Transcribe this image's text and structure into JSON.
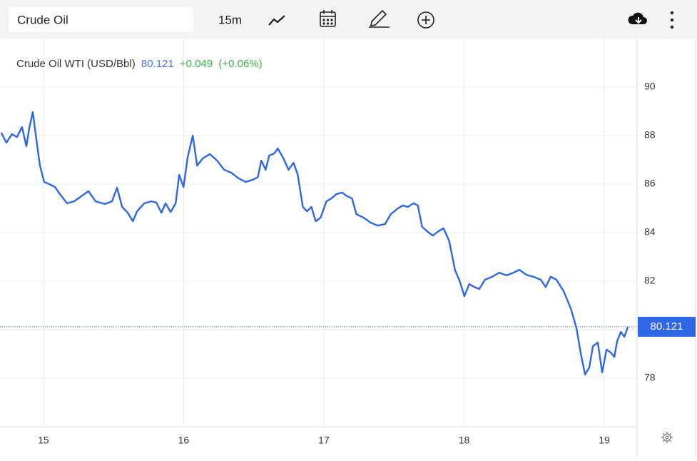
{
  "toolbar": {
    "symbol": "Crude Oil",
    "interval": "15m"
  },
  "chart_data": {
    "type": "line",
    "change": "+0.049",
    "change_pct": "(+0.06%)",
    "last_value": 80.121,
    "x": [
      14.699,
      14.735,
      14.776,
      14.811,
      14.847,
      14.878,
      14.898,
      14.924,
      14.949,
      14.975,
      15.005,
      15.041,
      15.082,
      15.117,
      15.168,
      15.219,
      15.27,
      15.321,
      15.372,
      15.438,
      15.489,
      15.525,
      15.561,
      15.601,
      15.637,
      15.668,
      15.719,
      15.769,
      15.805,
      15.841,
      15.871,
      15.907,
      15.943,
      15.968,
      15.999,
      16.029,
      16.065,
      16.096,
      16.136,
      16.187,
      16.238,
      16.289,
      16.34,
      16.391,
      16.442,
      16.493,
      16.529,
      16.554,
      16.585,
      16.61,
      16.646,
      16.671,
      16.712,
      16.748,
      16.784,
      16.814,
      16.85,
      16.88,
      16.911,
      16.942,
      16.977,
      17.018,
      17.054,
      17.089,
      17.13,
      17.166,
      17.201,
      17.232,
      17.283,
      17.334,
      17.385,
      17.436,
      17.477,
      17.528,
      17.563,
      17.599,
      17.64,
      17.67,
      17.701,
      17.742,
      17.777,
      17.818,
      17.854,
      17.894,
      17.935,
      17.971,
      18.002,
      18.037,
      18.073,
      18.109,
      18.149,
      18.2,
      18.251,
      18.302,
      18.353,
      18.394,
      18.445,
      18.496,
      18.547,
      18.582,
      18.618,
      18.659,
      18.71,
      18.761,
      18.802,
      18.832,
      18.863,
      18.893,
      18.919,
      18.954,
      18.985,
      19.016,
      19.046,
      19.072,
      19.092,
      19.118,
      19.143,
      19.169
    ],
    "series": [
      {
        "name": "Crude Oil WTI (USD/Bbl)",
        "color": "#2e67e6",
        "values": [
          88.12,
          87.71,
          88.06,
          87.94,
          88.35,
          87.56,
          88.29,
          88.97,
          87.85,
          86.76,
          86.09,
          86.0,
          85.88,
          85.59,
          85.21,
          85.29,
          85.5,
          85.71,
          85.29,
          85.18,
          85.29,
          85.85,
          85.06,
          84.82,
          84.47,
          84.88,
          85.21,
          85.29,
          85.24,
          84.82,
          85.21,
          84.85,
          85.21,
          86.38,
          85.88,
          87.12,
          88.0,
          86.76,
          87.06,
          87.24,
          86.97,
          86.59,
          86.47,
          86.24,
          86.09,
          86.18,
          86.29,
          86.97,
          86.59,
          87.18,
          87.26,
          87.47,
          87.06,
          86.59,
          86.88,
          86.38,
          85.06,
          84.88,
          85.06,
          84.47,
          84.62,
          85.29,
          85.41,
          85.59,
          85.65,
          85.5,
          85.41,
          84.76,
          84.62,
          84.41,
          84.29,
          84.35,
          84.76,
          85.0,
          85.12,
          85.06,
          85.21,
          85.12,
          84.24,
          84.03,
          83.88,
          84.06,
          84.18,
          83.65,
          82.47,
          81.97,
          81.38,
          81.88,
          81.76,
          81.68,
          82.06,
          82.18,
          82.35,
          82.24,
          82.35,
          82.47,
          82.26,
          82.18,
          82.06,
          81.76,
          82.18,
          82.06,
          81.59,
          80.88,
          80.06,
          79.03,
          78.15,
          78.44,
          79.32,
          79.47,
          78.24,
          79.18,
          79.06,
          78.88,
          79.53,
          79.91,
          79.71,
          80.121
        ]
      }
    ],
    "xlim": [
      14.69,
      19.234
    ],
    "xticks": [
      15,
      16,
      17,
      18,
      19
    ],
    "ylim": [
      76,
      92
    ],
    "yticks": [
      78,
      80,
      82,
      84,
      86,
      88,
      90
    ],
    "grid": true
  }
}
